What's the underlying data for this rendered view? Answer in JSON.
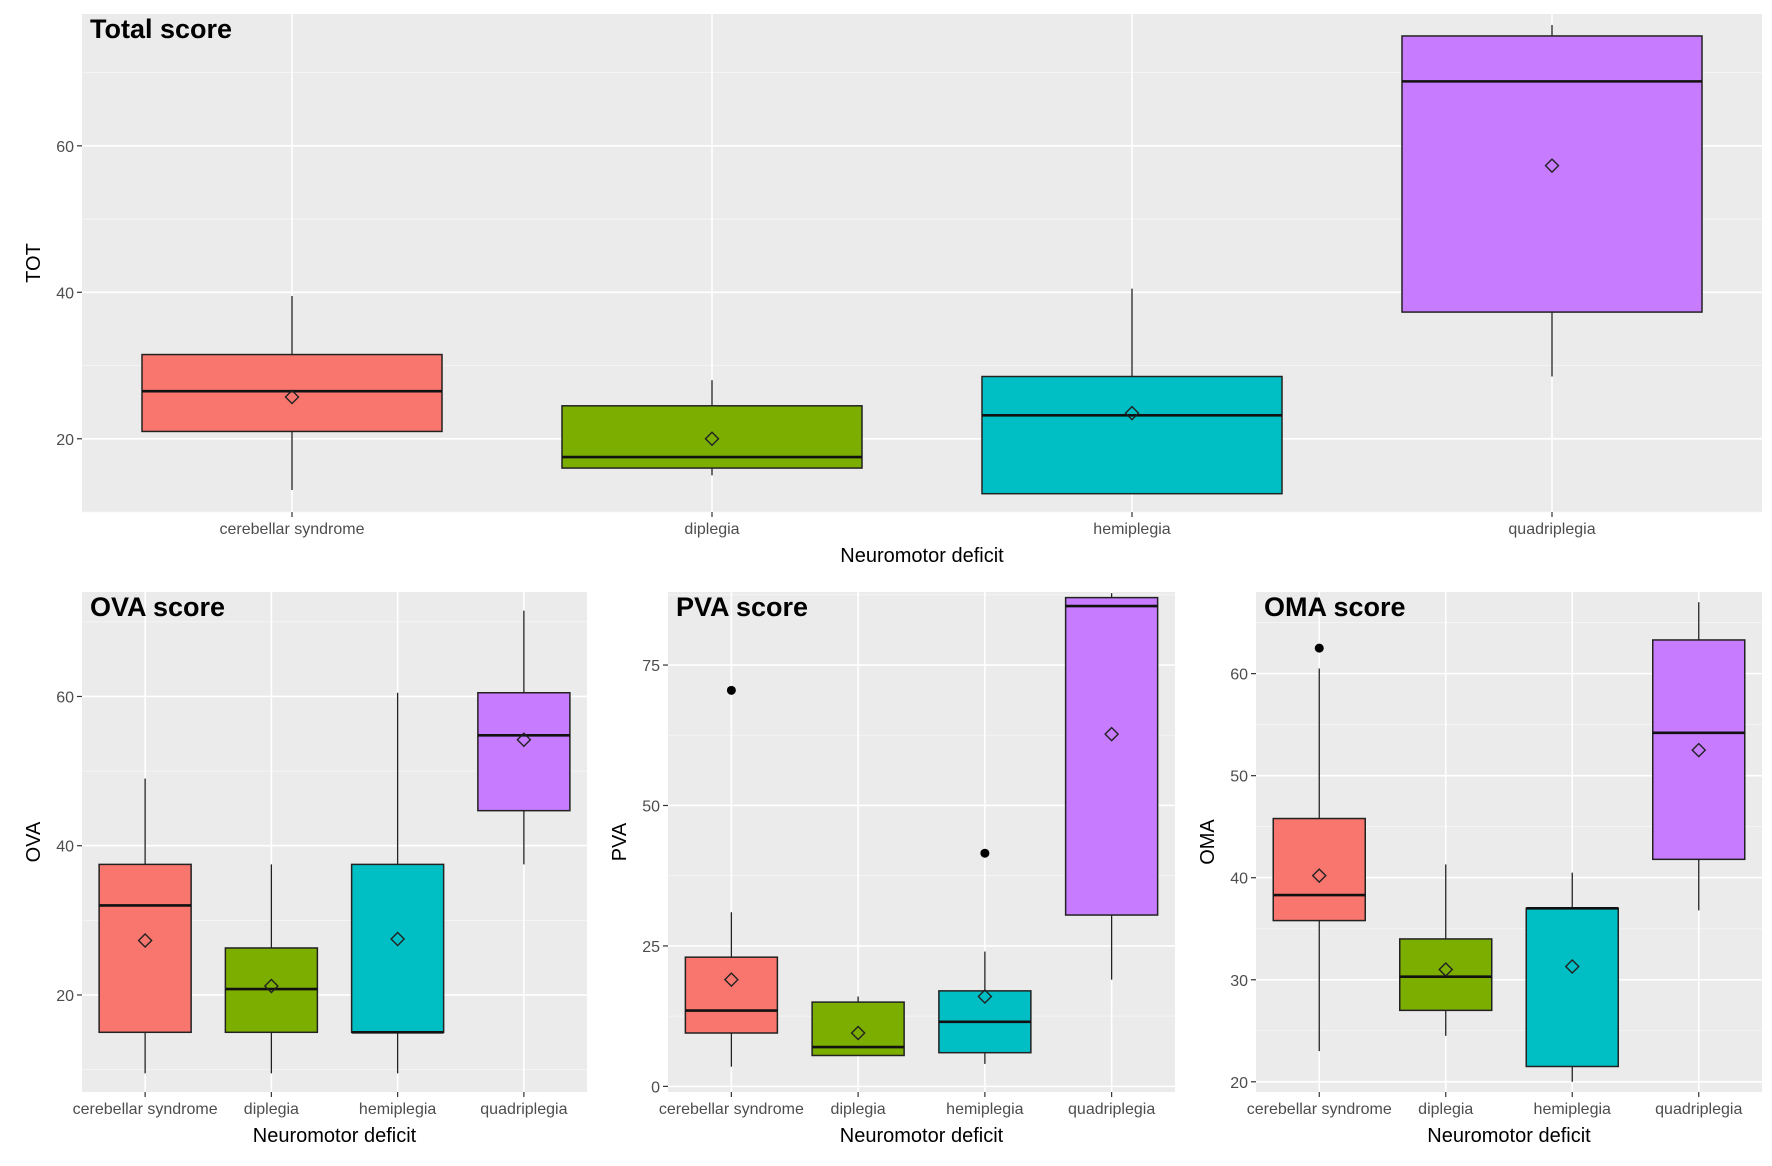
{
  "chart_data": [
    {
      "id": "total",
      "type": "box",
      "title": "Total score",
      "xlabel": "Neuromotor deficit",
      "ylabel": "TOT",
      "ylim": [
        10,
        78
      ],
      "yticks": [
        20,
        40,
        60
      ],
      "categories": [
        "cerebellar syndrome",
        "diplegia",
        "hemiplegia",
        "quadriplegia"
      ],
      "colors": [
        "#f8766d",
        "#7cae00",
        "#00bfc4",
        "#c77cff"
      ],
      "boxes": [
        {
          "lower": 13,
          "q1": 21,
          "median": 26.5,
          "q3": 31.5,
          "upper": 39.5,
          "mean": 25.7,
          "outliers": []
        },
        {
          "lower": 15,
          "q1": 16,
          "median": 17.5,
          "q3": 24.5,
          "upper": 28,
          "mean": 20,
          "outliers": []
        },
        {
          "lower": 12.5,
          "q1": 12.5,
          "median": 23.2,
          "q3": 28.5,
          "upper": 40.5,
          "mean": 23.5,
          "outliers": []
        },
        {
          "lower": 28.5,
          "q1": 37.3,
          "median": 68.8,
          "q3": 75,
          "upper": 76.5,
          "mean": 57.3,
          "outliers": []
        }
      ]
    },
    {
      "id": "ova",
      "type": "box",
      "title": "OVA score",
      "xlabel": "Neuromotor deficit",
      "ylabel": "OVA",
      "ylim": [
        7,
        74
      ],
      "yticks": [
        20,
        40,
        60
      ],
      "categories": [
        "cerebellar syndrome",
        "diplegia",
        "hemiplegia",
        "quadriplegia"
      ],
      "colors": [
        "#f8766d",
        "#7cae00",
        "#00bfc4",
        "#c77cff"
      ],
      "boxes": [
        {
          "lower": 9.5,
          "q1": 15,
          "median": 32,
          "q3": 37.5,
          "upper": 49,
          "mean": 27.3,
          "outliers": []
        },
        {
          "lower": 9.5,
          "q1": 15,
          "median": 20.8,
          "q3": 26.3,
          "upper": 37.5,
          "mean": 21.2,
          "outliers": []
        },
        {
          "lower": 9.5,
          "q1": 15,
          "median": 15,
          "q3": 37.5,
          "upper": 60.5,
          "mean": 27.5,
          "outliers": []
        },
        {
          "lower": 37.5,
          "q1": 44.7,
          "median": 54.8,
          "q3": 60.5,
          "upper": 71.5,
          "mean": 54.2,
          "outliers": []
        }
      ]
    },
    {
      "id": "pva",
      "type": "box",
      "title": "PVA score",
      "xlabel": "Neuromotor deficit",
      "ylabel": "PVA",
      "ylim": [
        -1,
        88
      ],
      "yticks": [
        0,
        25,
        50,
        75
      ],
      "categories": [
        "cerebellar syndrome",
        "diplegia",
        "hemiplegia",
        "quadriplegia"
      ],
      "colors": [
        "#f8766d",
        "#7cae00",
        "#00bfc4",
        "#c77cff"
      ],
      "boxes": [
        {
          "lower": 3.5,
          "q1": 9.5,
          "median": 13.5,
          "q3": 23,
          "upper": 31,
          "mean": 19,
          "outliers": [
            70.5
          ]
        },
        {
          "lower": 5.5,
          "q1": 5.5,
          "median": 7,
          "q3": 15,
          "upper": 16,
          "mean": 9.5,
          "outliers": []
        },
        {
          "lower": 4,
          "q1": 6,
          "median": 11.5,
          "q3": 17,
          "upper": 24,
          "mean": 16,
          "outliers": [
            41.5
          ]
        },
        {
          "lower": 19,
          "q1": 30.5,
          "median": 85.5,
          "q3": 87,
          "upper": 87.8,
          "mean": 62.7,
          "outliers": []
        }
      ]
    },
    {
      "id": "oma",
      "type": "box",
      "title": "OMA score",
      "xlabel": "Neuromotor deficit",
      "ylabel": "OMA",
      "ylim": [
        19,
        68
      ],
      "yticks": [
        20,
        30,
        40,
        50,
        60
      ],
      "categories": [
        "cerebellar syndrome",
        "diplegia",
        "hemiplegia",
        "quadriplegia"
      ],
      "colors": [
        "#f8766d",
        "#7cae00",
        "#00bfc4",
        "#c77cff"
      ],
      "boxes": [
        {
          "lower": 23,
          "q1": 35.8,
          "median": 38.3,
          "q3": 45.8,
          "upper": 60.5,
          "mean": 40.2,
          "outliers": [
            62.5
          ]
        },
        {
          "lower": 24.5,
          "q1": 27,
          "median": 30.3,
          "q3": 34,
          "upper": 41.3,
          "mean": 31,
          "outliers": []
        },
        {
          "lower": 20,
          "q1": 21.5,
          "median": 37,
          "q3": 37,
          "upper": 40.5,
          "mean": 31.3,
          "outliers": []
        },
        {
          "lower": 36.8,
          "q1": 41.8,
          "median": 54.2,
          "q3": 63.3,
          "upper": 67,
          "mean": 52.5,
          "outliers": []
        }
      ]
    }
  ]
}
